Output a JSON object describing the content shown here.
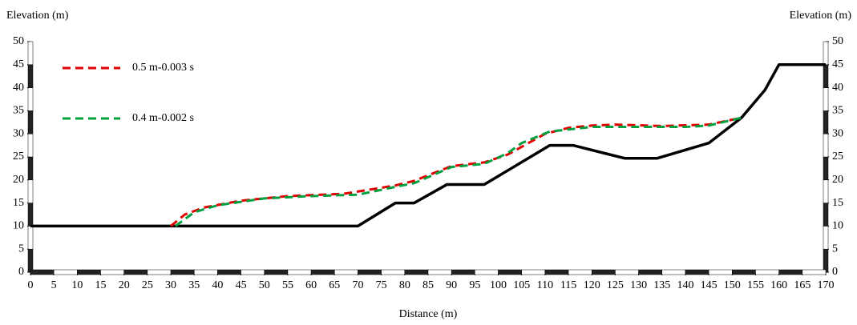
{
  "chart_data": {
    "type": "line",
    "ylabel": "Elevation (m)",
    "y2label": "Elevation (m)",
    "xlabel": "Distance (m)",
    "xlim": [
      0,
      170
    ],
    "xticks": [
      0,
      5,
      10,
      15,
      20,
      25,
      30,
      35,
      40,
      45,
      50,
      55,
      60,
      65,
      70,
      75,
      80,
      85,
      90,
      95,
      100,
      105,
      110,
      115,
      120,
      125,
      130,
      135,
      140,
      145,
      150,
      155,
      160,
      165,
      170
    ],
    "ylim": [
      0,
      50
    ],
    "yticks": [
      0,
      5,
      10,
      15,
      20,
      25,
      30,
      35,
      40,
      45,
      50
    ],
    "y2lim": [
      0,
      50
    ],
    "y2ticks": [
      0,
      5,
      10,
      15,
      20,
      25,
      30,
      35,
      40,
      45,
      50
    ],
    "legend": "upper left",
    "series": [
      {
        "color": "#000000",
        "dash": false,
        "x": [
          0,
          70,
          78,
          82,
          89,
          97,
          111,
          116,
          127,
          134,
          145,
          152,
          157,
          160,
          170
        ],
        "values": [
          10,
          10,
          15,
          15,
          19,
          19,
          27.5,
          27.5,
          24.7,
          24.7,
          28,
          33.5,
          39.5,
          45,
          45
        ]
      },
      {
        "name": "0.5 m-0.003 s",
        "color": "#e00000",
        "dash": true,
        "x": [
          30,
          33,
          37,
          45,
          55,
          67,
          78,
          82,
          90,
          97,
          102,
          110,
          115,
          120,
          125,
          135,
          145,
          152
        ],
        "values": [
          10,
          12.5,
          14,
          15.5,
          16.5,
          17,
          18.8,
          19.8,
          23,
          23.8,
          25.5,
          30,
          31.3,
          31.8,
          32,
          31.7,
          32,
          33.5
        ]
      },
      {
        "name": "0.4 m-0.002 s",
        "color": "#00a040",
        "dash": true,
        "x": [
          31,
          35,
          40,
          50,
          60,
          70,
          78,
          82,
          90,
          97,
          102,
          105,
          111,
          120,
          130,
          140,
          145,
          152
        ],
        "values": [
          10,
          13,
          14.5,
          16,
          16.5,
          16.8,
          18.5,
          19.3,
          22.8,
          23.5,
          25.8,
          28,
          30.5,
          31.5,
          31.5,
          31.5,
          31.8,
          33.5
        ]
      }
    ]
  }
}
